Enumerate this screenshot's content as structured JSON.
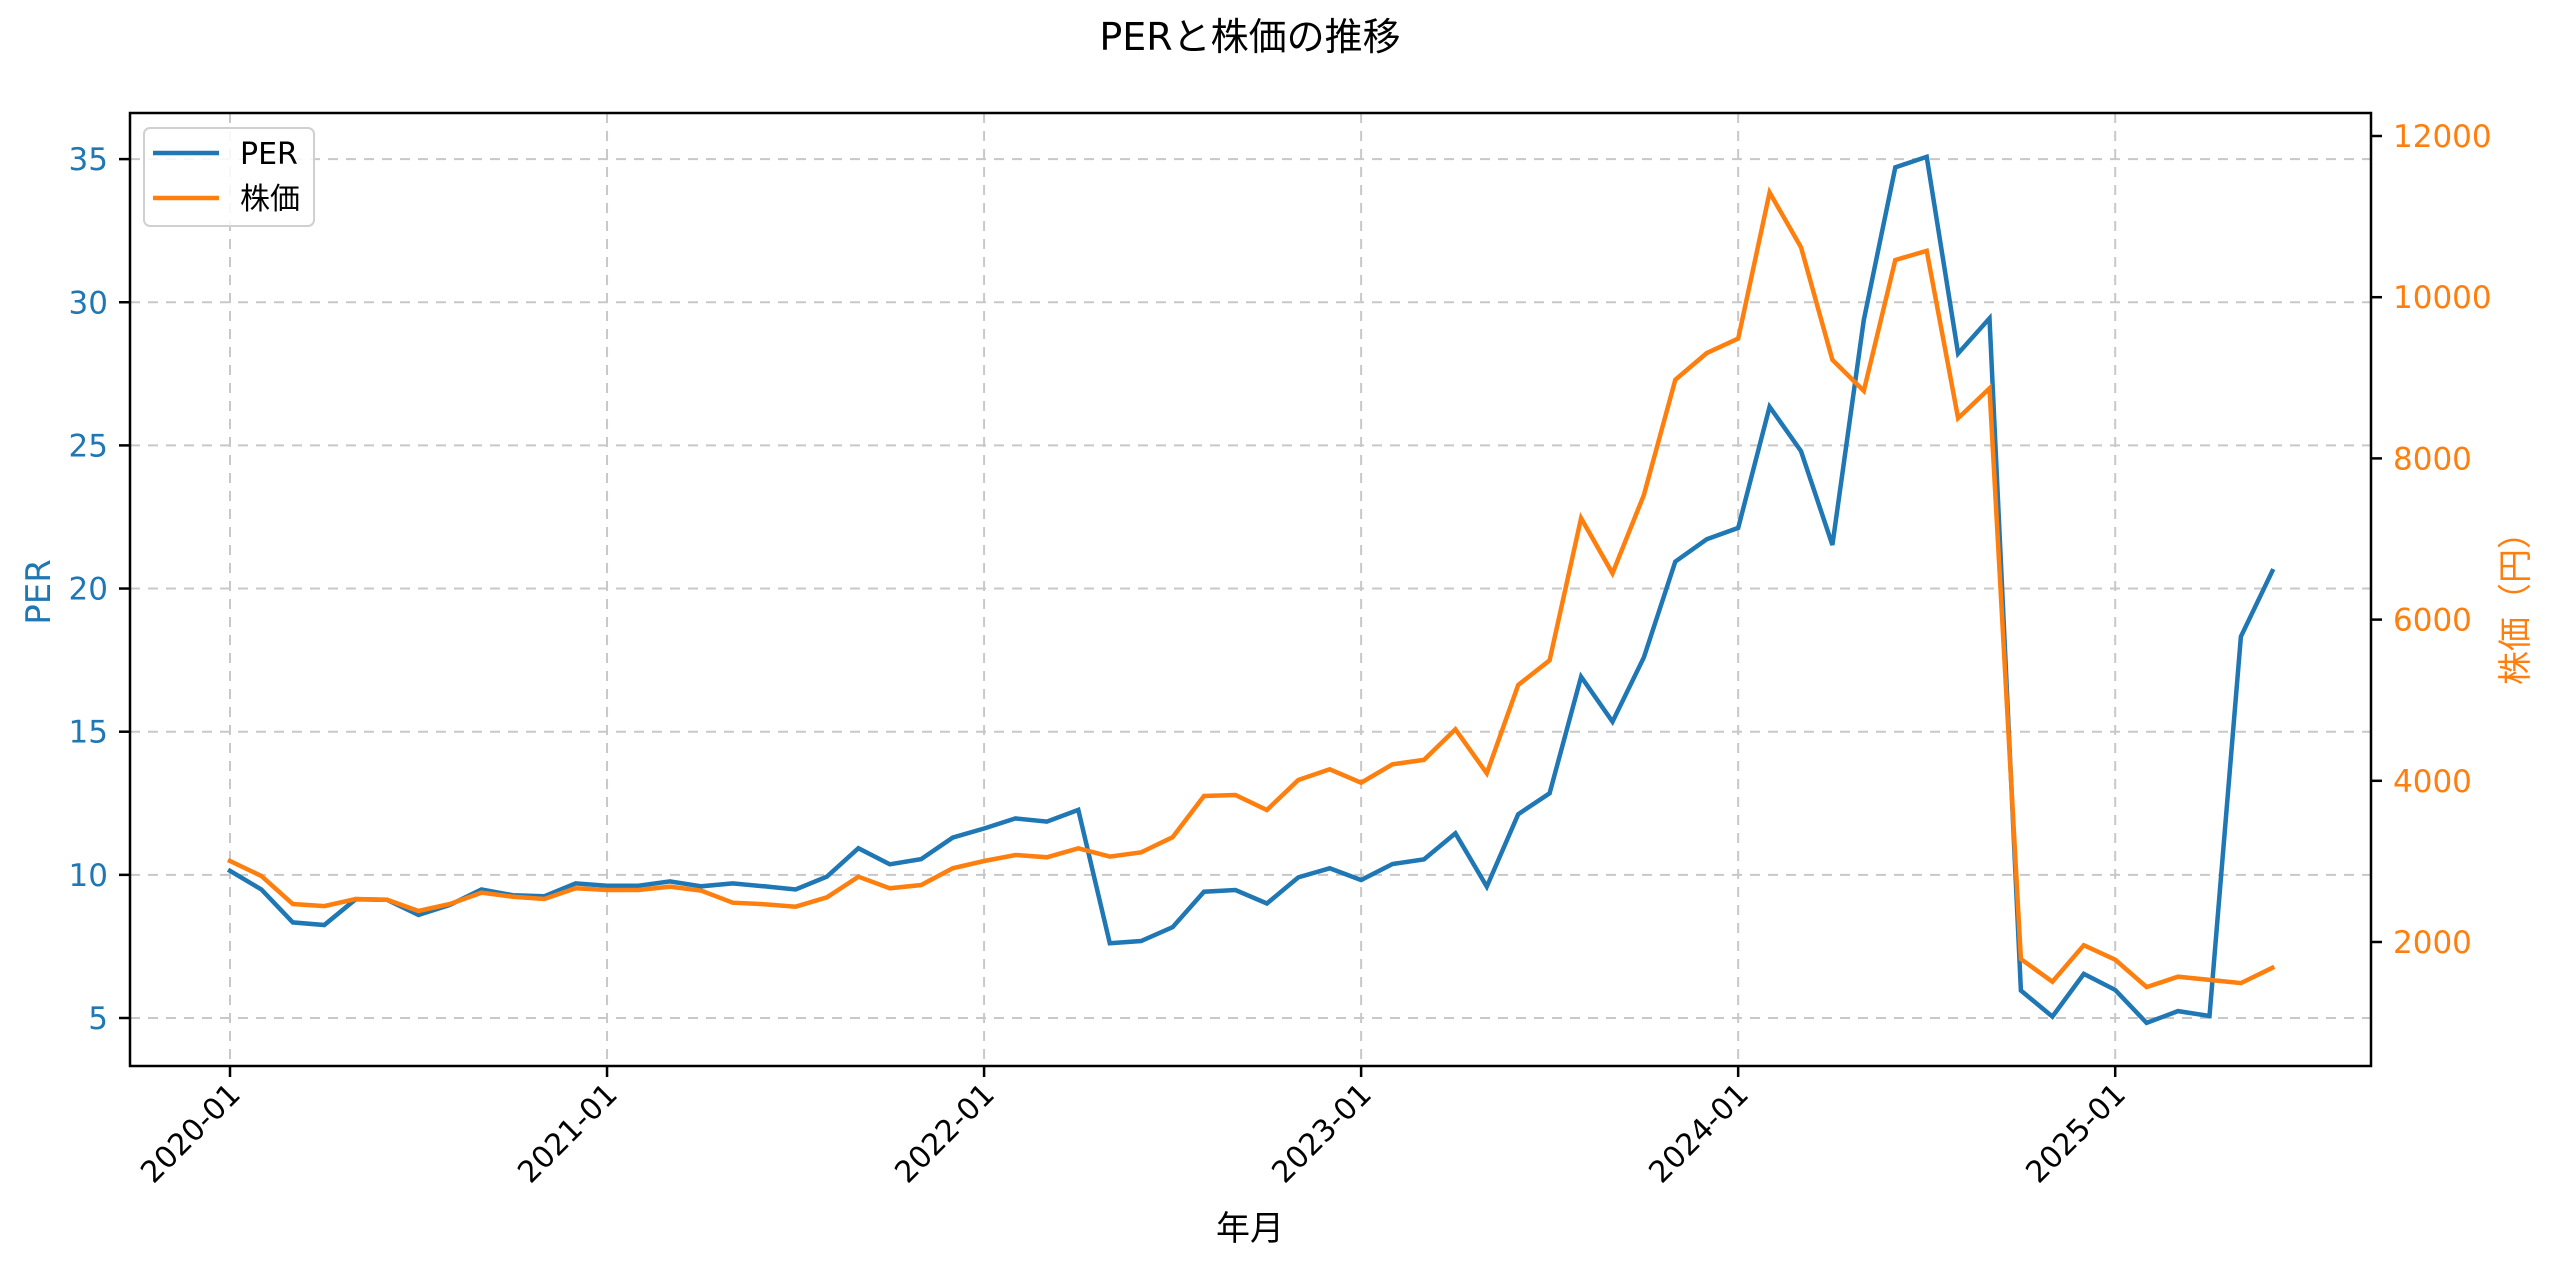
{
  "chart_data": {
    "type": "line",
    "title": "PERと株価の推移",
    "xlabel": "年月",
    "ylabel_left": "PER",
    "ylabel_right": "株価（円）",
    "grid": true,
    "legend_position": "upper left",
    "x_tick_labels": [
      "2020-01",
      "2021-01",
      "2022-01",
      "2023-01",
      "2024-01",
      "2025-01"
    ],
    "x_tick_indices": [
      0,
      12,
      24,
      36,
      48,
      60
    ],
    "y_left_ticks": [
      5,
      10,
      15,
      20,
      25,
      30,
      35
    ],
    "y_left_range": [
      3.3,
      36.6
    ],
    "y_right_ticks": [
      2000,
      4000,
      6000,
      8000,
      10000,
      12000
    ],
    "y_right_range": [
      460,
      12290
    ],
    "x": [
      "2020-01",
      "2020-02",
      "2020-03",
      "2020-04",
      "2020-05",
      "2020-06",
      "2020-07",
      "2020-08",
      "2020-09",
      "2020-10",
      "2020-11",
      "2020-12",
      "2021-01",
      "2021-02",
      "2021-03",
      "2021-04",
      "2021-05",
      "2021-06",
      "2021-07",
      "2021-08",
      "2021-09",
      "2021-10",
      "2021-11",
      "2021-12",
      "2022-01",
      "2022-02",
      "2022-03",
      "2022-04",
      "2022-05",
      "2022-06",
      "2022-07",
      "2022-08",
      "2022-09",
      "2022-10",
      "2022-11",
      "2022-12",
      "2023-01",
      "2023-02",
      "2023-03",
      "2023-04",
      "2023-05",
      "2023-06",
      "2023-07",
      "2023-08",
      "2023-09",
      "2023-10",
      "2023-11",
      "2023-12",
      "2024-01",
      "2024-02",
      "2024-03",
      "2024-04",
      "2024-05",
      "2024-06",
      "2024-07",
      "2024-08",
      "2024-09",
      "2024-10",
      "2024-11",
      "2024-12",
      "2025-01",
      "2025-02",
      "2025-03",
      "2025-04",
      "2025-05",
      "2025-06"
    ],
    "series": [
      {
        "name": "PER",
        "axis": "left",
        "color": "#1f77b4",
        "values": [
          10.14,
          9.49,
          8.34,
          8.25,
          9.15,
          9.13,
          8.6,
          8.95,
          9.49,
          9.29,
          9.25,
          9.7,
          9.62,
          9.62,
          9.77,
          9.6,
          9.7,
          9.6,
          9.49,
          9.94,
          10.93,
          10.37,
          10.55,
          11.3,
          11.62,
          11.97,
          11.86,
          12.27,
          7.61,
          7.69,
          8.17,
          9.41,
          9.47,
          9.0,
          9.91,
          10.23,
          9.82,
          10.38,
          10.54,
          11.45,
          9.59,
          12.12,
          12.85,
          16.92,
          15.35,
          17.6,
          20.94,
          21.72,
          22.12,
          26.35,
          24.8,
          21.52,
          29.38,
          34.71,
          35.08,
          28.21,
          29.44,
          5.96,
          5.05,
          6.54,
          5.98,
          4.83,
          5.24,
          5.07,
          18.32,
          20.61
        ]
      },
      {
        "name": "株価",
        "axis": "right",
        "color": "#ff7f0e",
        "values": [
          3005,
          2819,
          2471,
          2446,
          2533,
          2525,
          2385,
          2471,
          2612,
          2562,
          2533,
          2666,
          2645,
          2645,
          2686,
          2636,
          2488,
          2469,
          2438,
          2554,
          2810,
          2666,
          2707,
          2914,
          3005,
          3080,
          3051,
          3163,
          3059,
          3113,
          3300,
          3812,
          3824,
          3638,
          4010,
          4143,
          3977,
          4205,
          4259,
          4639,
          4093,
          5189,
          5495,
          7258,
          6575,
          7547,
          8975,
          9306,
          9486,
          11299,
          10620,
          9223,
          8838,
          10462,
          10576,
          8499,
          8869,
          1788,
          1508,
          1960,
          1780,
          1440,
          1570,
          1530,
          1490,
          1680
        ]
      }
    ]
  },
  "legend": {
    "items": [
      {
        "label": "PER",
        "color": "#1f77b4"
      },
      {
        "label": "株価",
        "color": "#ff7f0e"
      }
    ]
  },
  "colors": {
    "per": "#1f77b4",
    "price": "#ff7f0e",
    "grid": "#c8c8c8",
    "frame": "#000000"
  }
}
